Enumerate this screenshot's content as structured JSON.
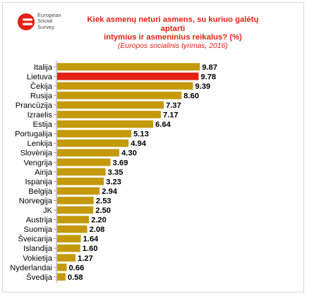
{
  "logo": {
    "text": "European\nSocial\nSurvey",
    "colors": {
      "red": "#e32114"
    }
  },
  "chart_data": {
    "type": "bar",
    "orientation": "horizontal",
    "title_lines": [
      "Kiek asmenų neturi asmens, su kuriuo galėtų aptarti",
      "intymius ir asmeninius reikalus? (%)"
    ],
    "subtitle": "(Europos socialinis tyrimas, 2016)",
    "categories": [
      "Italija",
      "Lietuva",
      "Čekija",
      "Rusija",
      "Prancūzija",
      "Izraelis",
      "Estija",
      "Portugalija",
      "Lenkija",
      "Slovėnija",
      "Vengrija",
      "Airija",
      "Ispanija",
      "Belgija",
      "Norvegija",
      "JK",
      "Austrija",
      "Suomija",
      "Šveicarija",
      "Islandija",
      "Vokietija",
      "Nyderlandai",
      "Švedija"
    ],
    "values": [
      9.87,
      9.78,
      9.39,
      8.6,
      7.37,
      7.17,
      6.64,
      5.13,
      4.94,
      4.3,
      3.69,
      3.35,
      3.23,
      2.94,
      2.53,
      2.5,
      2.2,
      2.08,
      1.64,
      1.6,
      1.27,
      0.66,
      0.58
    ],
    "value_labels": [
      "9.87",
      "9.78",
      "9.39",
      "8.60",
      "7.37",
      "7.17",
      "6.64",
      "5.13",
      "4.94",
      "4.30",
      "3.69",
      "3.35",
      "3.23",
      "2.94",
      "2.53",
      "2.50",
      "2.20",
      "2.08",
      "1.64",
      "1.60",
      "1.27",
      "0.66",
      "0.58"
    ],
    "highlight": "Lietuva",
    "xlim": [
      0,
      10
    ],
    "grid": false,
    "legend": "none",
    "colors": {
      "bar": "#c49a0a",
      "highlight_bar": "#e32114",
      "axis": "#9a9a9a"
    }
  }
}
